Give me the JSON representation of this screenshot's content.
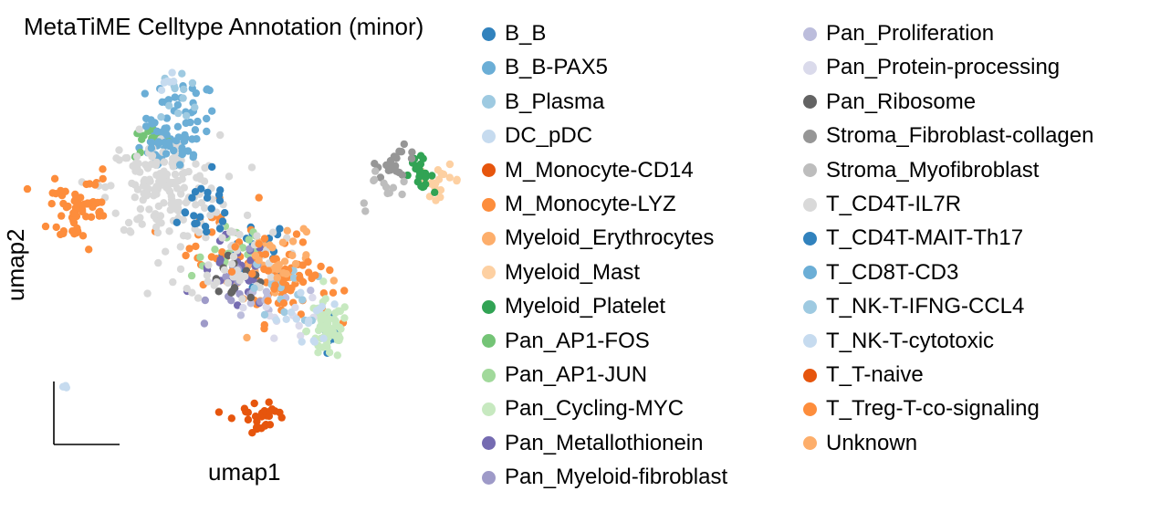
{
  "chart_data": {
    "type": "scatter",
    "title": "MetaTiME Celltype Annotation (minor)",
    "xlabel": "umap1",
    "ylabel": "umap2",
    "grid": false,
    "legend_placement": "right, two columns",
    "categories": [
      {
        "name": "B_B",
        "color": "#3182bd"
      },
      {
        "name": "B_B-PAX5",
        "color": "#6baed6"
      },
      {
        "name": "B_Plasma",
        "color": "#9ecae1"
      },
      {
        "name": "DC_pDC",
        "color": "#c6dbef"
      },
      {
        "name": "M_Monocyte-CD14",
        "color": "#e6550d"
      },
      {
        "name": "M_Monocyte-LYZ",
        "color": "#fd8d3c"
      },
      {
        "name": "Myeloid_Erythrocytes",
        "color": "#fdae6b"
      },
      {
        "name": "Myeloid_Mast",
        "color": "#fdd0a2"
      },
      {
        "name": "Myeloid_Platelet",
        "color": "#31a354"
      },
      {
        "name": "Pan_AP1-FOS",
        "color": "#74c476"
      },
      {
        "name": "Pan_AP1-JUN",
        "color": "#a1d99b"
      },
      {
        "name": "Pan_Cycling-MYC",
        "color": "#c7e9c0"
      },
      {
        "name": "Pan_Metallothionein",
        "color": "#756bb1"
      },
      {
        "name": "Pan_Myeloid-fibroblast",
        "color": "#9e9ac8"
      },
      {
        "name": "Pan_Proliferation",
        "color": "#bcbddc"
      },
      {
        "name": "Pan_Protein-processing",
        "color": "#dadaeb"
      },
      {
        "name": "Pan_Ribosome",
        "color": "#636363"
      },
      {
        "name": "Stroma_Fibroblast-collagen",
        "color": "#969696"
      },
      {
        "name": "Stroma_Myofibroblast",
        "color": "#bdbdbd"
      },
      {
        "name": "T_CD4T-IL7R",
        "color": "#d9d9d9"
      },
      {
        "name": "T_CD4T-MAIT-Th17",
        "color": "#3182bd"
      },
      {
        "name": "T_CD8T-CD3",
        "color": "#6baed6"
      },
      {
        "name": "T_NK-T-IFNG-CCL4",
        "color": "#9ecae1"
      },
      {
        "name": "T_NK-T-cytotoxic",
        "color": "#c6dbef"
      },
      {
        "name": "T_T-naive",
        "color": "#e6550d"
      },
      {
        "name": "T_Treg-T-co-signaling",
        "color": "#fd8d3c"
      },
      {
        "name": "Unknown",
        "color": "#fdae6b"
      }
    ],
    "regions": [
      {
        "cat": 0,
        "cx": 0.62,
        "cy": 0.52,
        "sx": 0.05,
        "sy": 0.04,
        "n": 22
      },
      {
        "cat": 0,
        "cx": 0.83,
        "cy": 0.28,
        "sx": 0.01,
        "sy": 0.03,
        "n": 8
      },
      {
        "cat": 1,
        "cx": 0.4,
        "cy": 0.87,
        "sx": 0.05,
        "sy": 0.05,
        "n": 40
      },
      {
        "cat": 1,
        "cx": 0.35,
        "cy": 0.78,
        "sx": 0.04,
        "sy": 0.03,
        "n": 30
      },
      {
        "cat": 2,
        "cx": 0.4,
        "cy": 0.93,
        "sx": 0.03,
        "sy": 0.04,
        "n": 12
      },
      {
        "cat": 3,
        "cx": 0.36,
        "cy": 0.97,
        "sx": 0.01,
        "sy": 0.02,
        "n": 6
      },
      {
        "cat": 3,
        "cx": 0.06,
        "cy": 0.15,
        "sx": 0.01,
        "sy": 0.01,
        "n": 4
      },
      {
        "cat": 4,
        "cx": 0.6,
        "cy": 0.06,
        "sx": 0.04,
        "sy": 0.02,
        "n": 18
      },
      {
        "cat": 5,
        "cx": 0.1,
        "cy": 0.62,
        "sx": 0.04,
        "sy": 0.05,
        "n": 40
      },
      {
        "cat": 5,
        "cx": 0.7,
        "cy": 0.42,
        "sx": 0.06,
        "sy": 0.05,
        "n": 45
      },
      {
        "cat": 5,
        "cx": 0.5,
        "cy": 0.55,
        "sx": 0.06,
        "sy": 0.06,
        "n": 25
      },
      {
        "cat": 6,
        "cx": 0.65,
        "cy": 0.45,
        "sx": 0.06,
        "sy": 0.05,
        "n": 25
      },
      {
        "cat": 7,
        "cx": 1.14,
        "cy": 0.7,
        "sx": 0.03,
        "sy": 0.02,
        "n": 18
      },
      {
        "cat": 8,
        "cx": 1.08,
        "cy": 0.72,
        "sx": 0.02,
        "sy": 0.02,
        "n": 22
      },
      {
        "cat": 9,
        "cx": 0.31,
        "cy": 0.8,
        "sx": 0.03,
        "sy": 0.02,
        "n": 12
      },
      {
        "cat": 10,
        "cx": 0.55,
        "cy": 0.52,
        "sx": 0.06,
        "sy": 0.04,
        "n": 18
      },
      {
        "cat": 11,
        "cx": 0.82,
        "cy": 0.3,
        "sx": 0.03,
        "sy": 0.04,
        "n": 60
      },
      {
        "cat": 12,
        "cx": 0.55,
        "cy": 0.45,
        "sx": 0.05,
        "sy": 0.05,
        "n": 28
      },
      {
        "cat": 13,
        "cx": 0.58,
        "cy": 0.42,
        "sx": 0.05,
        "sy": 0.04,
        "n": 15
      },
      {
        "cat": 14,
        "cx": 0.65,
        "cy": 0.38,
        "sx": 0.05,
        "sy": 0.04,
        "n": 10
      },
      {
        "cat": 15,
        "cx": 0.72,
        "cy": 0.33,
        "sx": 0.05,
        "sy": 0.03,
        "n": 12
      },
      {
        "cat": 16,
        "cx": 0.55,
        "cy": 0.46,
        "sx": 0.05,
        "sy": 0.04,
        "n": 12
      },
      {
        "cat": 17,
        "cx": 1.02,
        "cy": 0.75,
        "sx": 0.03,
        "sy": 0.02,
        "n": 20
      },
      {
        "cat": 18,
        "cx": 0.98,
        "cy": 0.68,
        "sx": 0.04,
        "sy": 0.03,
        "n": 12
      },
      {
        "cat": 19,
        "cx": 0.35,
        "cy": 0.68,
        "sx": 0.08,
        "sy": 0.07,
        "n": 170
      },
      {
        "cat": 19,
        "cx": 0.55,
        "cy": 0.5,
        "sx": 0.07,
        "sy": 0.06,
        "n": 50
      },
      {
        "cat": 20,
        "cx": 0.45,
        "cy": 0.62,
        "sx": 0.06,
        "sy": 0.05,
        "n": 22
      },
      {
        "cat": 21,
        "cx": 0.35,
        "cy": 0.8,
        "sx": 0.04,
        "sy": 0.03,
        "n": 25
      },
      {
        "cat": 22,
        "cx": 0.7,
        "cy": 0.4,
        "sx": 0.05,
        "sy": 0.04,
        "n": 15
      },
      {
        "cat": 23,
        "cx": 0.75,
        "cy": 0.33,
        "sx": 0.04,
        "sy": 0.04,
        "n": 15
      },
      {
        "cat": 24,
        "cx": 0.63,
        "cy": 0.08,
        "sx": 0.03,
        "sy": 0.02,
        "n": 10
      },
      {
        "cat": 25,
        "cx": 0.12,
        "cy": 0.65,
        "sx": 0.04,
        "sy": 0.04,
        "n": 25
      },
      {
        "cat": 25,
        "cx": 0.68,
        "cy": 0.45,
        "sx": 0.06,
        "sy": 0.05,
        "n": 30
      },
      {
        "cat": 26,
        "cx": 0.7,
        "cy": 0.48,
        "sx": 0.06,
        "sy": 0.05,
        "n": 18
      }
    ]
  }
}
